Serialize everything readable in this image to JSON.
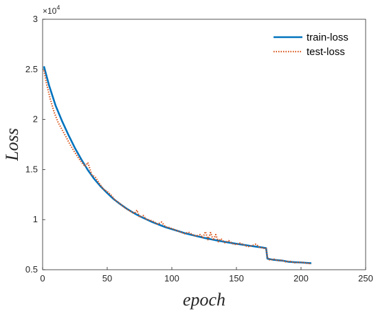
{
  "chart_data": {
    "type": "line",
    "title": "",
    "xlabel": "epoch",
    "ylabel": "Loss",
    "xlim": [
      0,
      250
    ],
    "ylim": [
      5000,
      30000
    ],
    "y_exponent_label": "×10",
    "y_exponent_power": "4",
    "x_ticks": [
      {
        "value": 0,
        "label": "0"
      },
      {
        "value": 50,
        "label": "50"
      },
      {
        "value": 100,
        "label": "100"
      },
      {
        "value": 150,
        "label": "150"
      },
      {
        "value": 200,
        "label": "200"
      },
      {
        "value": 250,
        "label": "250"
      }
    ],
    "y_ticks": [
      {
        "value": 5000,
        "label": "0.5"
      },
      {
        "value": 10000,
        "label": "1"
      },
      {
        "value": 15000,
        "label": "1.5"
      },
      {
        "value": 20000,
        "label": "2"
      },
      {
        "value": 25000,
        "label": "2.5"
      },
      {
        "value": 30000,
        "label": "3"
      }
    ],
    "grid": false,
    "legend_position": "top-right",
    "series": [
      {
        "name": "train-loss",
        "color": "#0072BD",
        "style": "solid",
        "x": [
          1,
          5,
          10,
          15,
          20,
          25,
          30,
          35,
          40,
          45,
          50,
          55,
          60,
          65,
          70,
          75,
          80,
          85,
          90,
          95,
          100,
          105,
          110,
          115,
          120,
          125,
          130,
          135,
          140,
          145,
          150,
          155,
          160,
          165,
          170,
          173,
          174,
          178,
          182,
          186,
          190,
          195,
          200,
          208
        ],
        "y": [
          25300,
          23400,
          21400,
          19850,
          18450,
          17150,
          16000,
          14950,
          14050,
          13300,
          12650,
          12050,
          11550,
          11100,
          10700,
          10350,
          10050,
          9750,
          9500,
          9250,
          9050,
          8850,
          8650,
          8480,
          8330,
          8180,
          8050,
          7920,
          7800,
          7690,
          7590,
          7490,
          7400,
          7310,
          7220,
          7150,
          6100,
          6000,
          5950,
          5900,
          5800,
          5750,
          5720,
          5650
        ]
      },
      {
        "name": "test-loss",
        "color": "#D95319",
        "style": "dotted",
        "x": [
          1,
          3,
          6,
          9,
          12,
          15,
          18,
          21,
          24,
          27,
          30,
          33,
          35,
          38,
          41,
          44,
          47,
          50,
          53,
          56,
          59,
          62,
          65,
          68,
          71,
          73,
          75,
          78,
          80,
          83,
          86,
          89,
          92,
          95,
          98,
          101,
          104,
          107,
          110,
          113,
          116,
          119,
          122,
          124,
          126,
          128,
          130,
          132,
          134,
          136,
          138,
          141,
          144,
          147,
          150,
          153,
          156,
          159,
          162,
          165,
          168,
          171,
          173,
          174,
          176,
          179,
          182,
          185,
          188,
          191,
          195,
          200,
          204,
          208
        ],
        "y": [
          24900,
          23600,
          22000,
          20700,
          19700,
          19000,
          18300,
          17550,
          16900,
          16300,
          15750,
          15300,
          15700,
          14500,
          14200,
          13600,
          13050,
          12800,
          12450,
          11950,
          11700,
          11350,
          11050,
          10850,
          10600,
          10950,
          10250,
          10400,
          10050,
          9950,
          9800,
          9550,
          9750,
          9300,
          9200,
          9050,
          8900,
          8750,
          8600,
          8750,
          8500,
          8350,
          8500,
          8200,
          8800,
          8000,
          8700,
          7950,
          8500,
          7800,
          8100,
          7700,
          7900,
          7600,
          7500,
          7650,
          7450,
          7300,
          7400,
          7550,
          7250,
          7150,
          7100,
          6200,
          5950,
          6050,
          5900,
          5950,
          5800,
          5850,
          5700,
          5750,
          5650,
          5600
        ]
      }
    ]
  }
}
